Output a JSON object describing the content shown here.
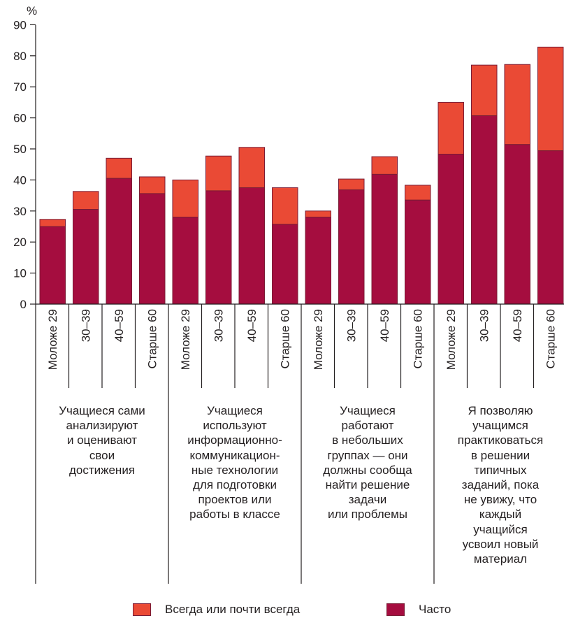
{
  "chart_data": {
    "type": "bar",
    "stacked": true,
    "ylabel": "%",
    "ylim": [
      0,
      90
    ],
    "yticks": [
      0,
      10,
      20,
      30,
      40,
      50,
      60,
      70,
      80,
      90
    ],
    "grid": false,
    "legend_position": "bottom",
    "groups": [
      {
        "label": "Учащиеся сами\nанализируют\nи оценивают\nсвои\nдостижения",
        "categories": [
          "Моложе 29",
          "30–39",
          "40–59",
          "Старше 60"
        ]
      },
      {
        "label": "Учащиеся\nиспользуют\nинформационно-\nкоммуникацион-\nные технологии\nдля подготовки\nпроектов или\nработы в классе",
        "categories": [
          "Моложе 29",
          "30–39",
          "40–59",
          "Старше 60"
        ]
      },
      {
        "label": "Учащиеся\nработают\nв небольших\nгруппах — они\nдолжны сообща\nнайти решение\nзадачи\nили проблемы",
        "categories": [
          "Моложе 29",
          "30–39",
          "40–59",
          "Старше 60"
        ]
      },
      {
        "label": "Я позволяю\nучащимся\nпрактиковаться\nв решении\nтипичных\nзаданий, пока\nне увижу, что\nкаждый\nучащийся\nусвоил новый\nматериал",
        "categories": [
          "Моложе 29",
          "30–39",
          "40–59",
          "Старше 60"
        ]
      }
    ],
    "series": [
      {
        "name": "Часто",
        "color": "#a50d3f",
        "values": [
          25,
          30.5,
          40.5,
          35.6,
          28,
          36.5,
          37.5,
          25.7,
          28,
          36.8,
          41.8,
          33.5,
          48.3,
          60.7,
          51.4,
          49.4
        ]
      },
      {
        "name": "Всегда или почти всегда",
        "color": "#ea4a35",
        "total_values": [
          27.3,
          36.3,
          47,
          41,
          40,
          47.7,
          50.5,
          37.5,
          30,
          40.3,
          47.5,
          38.3,
          65,
          77,
          77.2,
          82.8
        ]
      }
    ]
  }
}
